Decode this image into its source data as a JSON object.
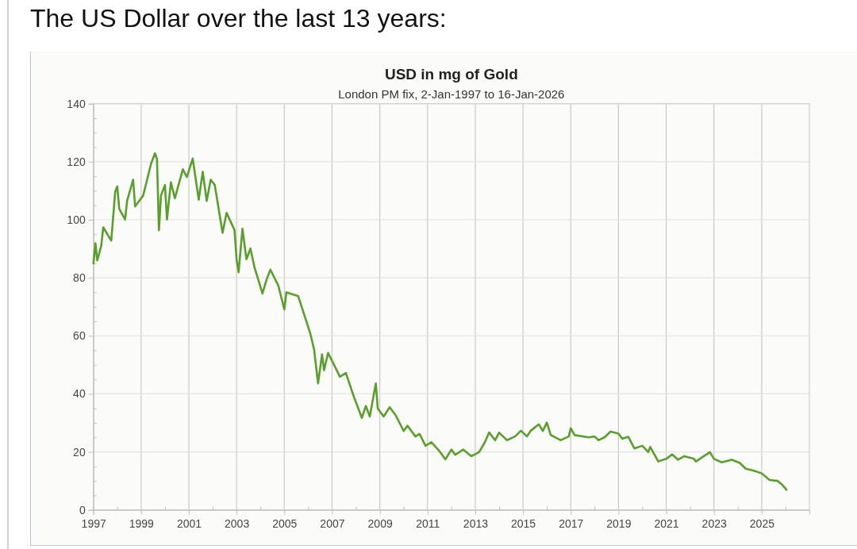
{
  "chart_data": {
    "type": "line",
    "title": "USD in mg of Gold",
    "subtitle": "London PM fix, 2-Jan-1997 to 16-Jan-2026",
    "annotations": [
      "The US Dollar over the last 13 years:"
    ],
    "x": [
      "1997-01-02",
      "1997-02",
      "1997-03",
      "1997-05",
      "1997-06",
      "1997-10",
      "1997-12",
      "1998-01",
      "1998-02",
      "1998-05",
      "1998-06",
      "1998-09",
      "1998-10",
      "1999-02",
      "1999-06",
      "1999-08",
      "1999-09",
      "1999-10",
      "1999-11",
      "2000-01",
      "2000-02",
      "2000-04",
      "2000-06",
      "2000-10",
      "2000-12",
      "2001-03",
      "2001-06",
      "2001-08",
      "2001-10",
      "2001-12",
      "2002-02",
      "2002-06",
      "2002-08",
      "2002-12",
      "2003-01",
      "2003-02",
      "2003-04",
      "2003-06",
      "2003-08",
      "2003-10",
      "2004-02",
      "2004-04",
      "2004-06",
      "2004-10",
      "2005-01",
      "2005-02",
      "2005-08",
      "2005-11",
      "2006-02",
      "2006-04",
      "2006-06",
      "2006-08",
      "2006-09",
      "2006-11",
      "2007-02",
      "2007-05",
      "2007-08",
      "2007-12",
      "2008-04",
      "2008-06",
      "2008-08",
      "2008-11",
      "2008-12",
      "2009-03",
      "2009-06",
      "2009-09",
      "2010-01",
      "2010-03",
      "2010-07",
      "2010-09",
      "2010-12",
      "2011-03",
      "2011-07",
      "2011-10",
      "2012-01",
      "2012-03",
      "2012-07",
      "2012-11",
      "2013-03",
      "2013-06",
      "2013-08",
      "2013-11",
      "2014-01",
      "2014-05",
      "2014-09",
      "2014-12",
      "2015-03",
      "2015-05",
      "2015-09",
      "2015-11",
      "2016-01",
      "2016-03",
      "2016-08",
      "2016-12",
      "2017-01",
      "2017-03",
      "2017-10",
      "2018-01",
      "2018-03",
      "2018-06",
      "2018-09",
      "2019-01",
      "2019-03",
      "2019-06",
      "2019-09",
      "2020-01",
      "2020-04",
      "2020-05",
      "2020-09",
      "2021-01",
      "2021-04",
      "2021-07",
      "2021-10",
      "2022-03",
      "2022-04",
      "2022-11",
      "2023-01",
      "2023-05",
      "2023-10",
      "2024-02",
      "2024-05",
      "2024-09",
      "2025-01",
      "2025-05",
      "2025-09",
      "2025-11",
      "2026-01-16"
    ],
    "series": [
      {
        "color": "#5a9e2c",
        "values": [
          85.0,
          91.9,
          86.0,
          91.0,
          97.4,
          92.8,
          109.7,
          111.5,
          103.7,
          100.1,
          106.5,
          113.8,
          104.6,
          108.3,
          119.2,
          122.9,
          121.0,
          96.4,
          108.3,
          112.0,
          100.1,
          112.9,
          107.4,
          117.4,
          114.7,
          121.1,
          106.9,
          116.5,
          106.5,
          113.8,
          112.0,
          95.5,
          102.4,
          96.4,
          86.4,
          81.9,
          96.9,
          86.4,
          90.1,
          83.7,
          74.6,
          79.1,
          82.8,
          77.3,
          69.1,
          75.0,
          73.7,
          67.3,
          60.9,
          55.4,
          43.6,
          53.6,
          48.1,
          54.1,
          50.0,
          45.9,
          47.2,
          39.0,
          31.7,
          35.8,
          32.2,
          43.6,
          34.9,
          32.2,
          35.4,
          32.6,
          27.2,
          29.0,
          25.3,
          26.2,
          22.1,
          23.3,
          20.3,
          17.4,
          20.8,
          19.0,
          20.8,
          18.5,
          19.9,
          23.5,
          26.7,
          24.0,
          26.6,
          24.0,
          25.3,
          27.3,
          25.3,
          27.3,
          29.5,
          27.2,
          30.1,
          25.8,
          24.0,
          25.3,
          28.1,
          25.8,
          25.0,
          25.3,
          24.0,
          25.0,
          27.0,
          26.3,
          24.5,
          25.2,
          21.2,
          22.1,
          19.9,
          21.7,
          16.7,
          17.6,
          19.1,
          17.3,
          18.5,
          17.6,
          16.7,
          19.9,
          17.6,
          16.4,
          17.3,
          16.2,
          14.2,
          13.5,
          12.6,
          10.3,
          10.0,
          8.9,
          6.9
        ]
      }
    ],
    "xlim": [
      "1997",
      "2027"
    ],
    "xticks": [
      "1997",
      {
        "value": "1998",
        "label": null
      },
      "1999",
      {
        "value": "2000",
        "label": null
      },
      "2001",
      {
        "value": "2002",
        "label": null
      },
      "2003",
      {
        "value": "2004",
        "label": null
      },
      "2005",
      {
        "value": "2006",
        "label": null
      },
      "2007",
      {
        "value": "2008",
        "label": null
      },
      "2009",
      {
        "value": "2010",
        "label": null
      },
      "2011",
      {
        "value": "2012",
        "label": null
      },
      "2013",
      {
        "value": "2014",
        "label": null
      },
      "2015",
      {
        "value": "2016",
        "label": null
      },
      "2017",
      {
        "value": "2018",
        "label": null
      },
      "2019",
      {
        "value": "2020",
        "label": null
      },
      "2021",
      {
        "value": "2022",
        "label": null
      },
      "2023",
      {
        "value": "2024",
        "label": null
      },
      "2025",
      {
        "value": "2026",
        "label": null
      }
    ],
    "ylim": [
      0,
      140
    ],
    "yticks": [
      0,
      {
        "value": 5,
        "label": null
      },
      {
        "value": 10,
        "label": null
      },
      {
        "value": 15,
        "label": null
      },
      20,
      {
        "value": 25,
        "label": null
      },
      {
        "value": 30,
        "label": null
      },
      {
        "value": 35,
        "label": null
      },
      40,
      {
        "value": 45,
        "label": null
      },
      {
        "value": 50,
        "label": null
      },
      {
        "value": 55,
        "label": null
      },
      60,
      {
        "value": 65,
        "label": null
      },
      {
        "value": 70,
        "label": null
      },
      {
        "value": 75,
        "label": null
      },
      80,
      {
        "value": 85,
        "label": null
      },
      {
        "value": 90,
        "label": null
      },
      {
        "value": 95,
        "label": null
      },
      100,
      {
        "value": 105,
        "label": null
      },
      {
        "value": 110,
        "label": null
      },
      {
        "value": 115,
        "label": null
      },
      120,
      {
        "value": 125,
        "label": null
      },
      {
        "value": 130,
        "label": null
      },
      {
        "value": 135,
        "label": null
      },
      140
    ],
    "grid": true,
    "line_style": "solid",
    "marker": "none"
  }
}
